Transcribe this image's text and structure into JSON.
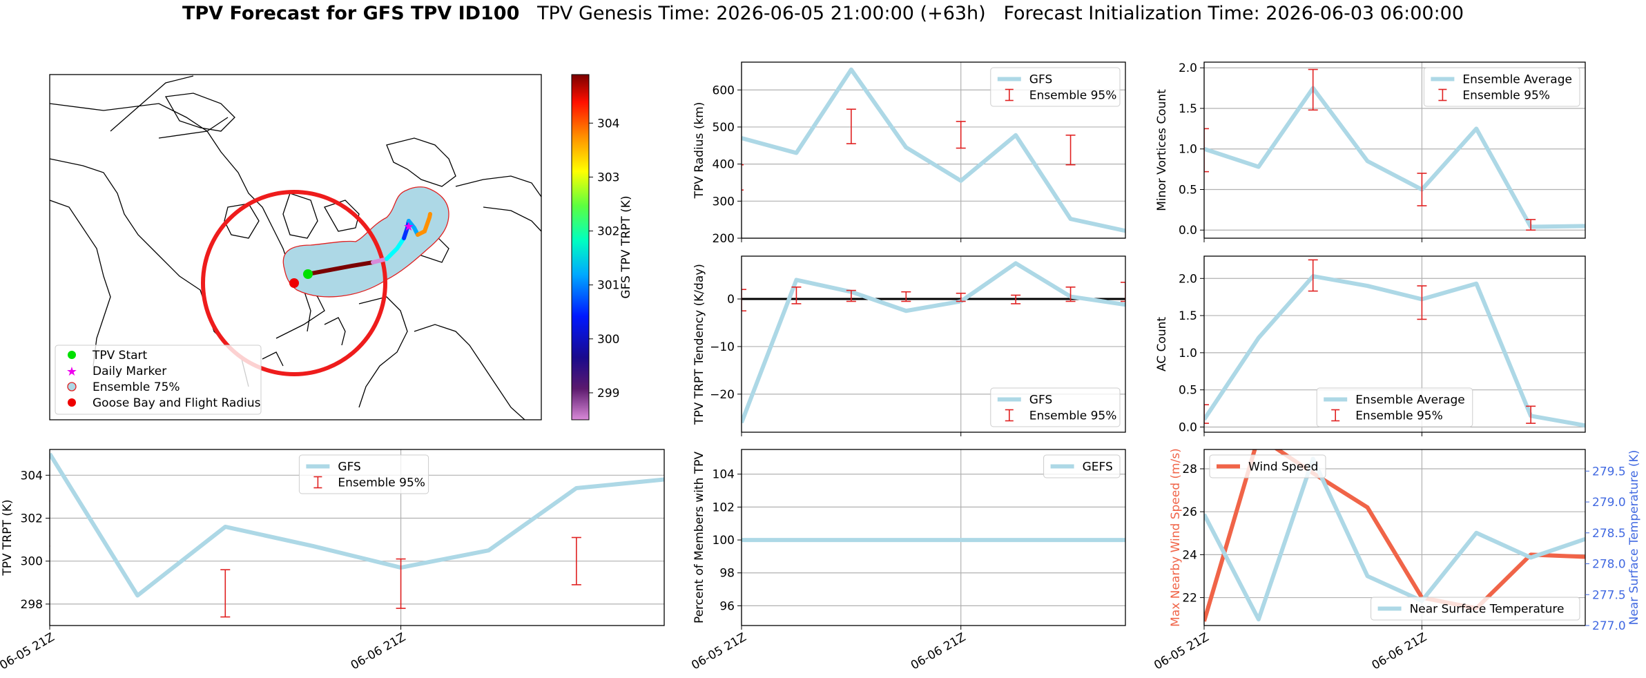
{
  "title": {
    "bold": "TPV Forecast for GFS TPV ID100",
    "genesis": "TPV Genesis Time: 2026-06-05 21:00:00 (+63h)",
    "init": "Forecast Initialization Time: 2026-06-03 06:00:00"
  },
  "colors": {
    "gfs_line": "#add8e6",
    "error_bar": "#e02020",
    "wind_line": "#f06448",
    "temp_axis": "#4169e1",
    "radius_circle": "#ee1c1c",
    "ensemble_fill": "#add8e6"
  },
  "map": {
    "colorbar_label": "GFS TPV TRPT (K)",
    "colorbar_ticks": [
      "299",
      "300",
      "301",
      "302",
      "303",
      "304"
    ],
    "colorbar_range": [
      298.5,
      304.9
    ],
    "legend": [
      "TPV Start",
      "Daily Marker",
      "Ensemble 75%",
      "Goose Bay and Flight Radius"
    ],
    "legend_icons": [
      "green-dot-icon",
      "magenta-star-icon",
      "outlined-circle-icon",
      "red-dot-icon"
    ]
  },
  "chart_data": [
    {
      "id": "radius",
      "type": "line",
      "ylabel": "TPV Radius (km)",
      "ylim": [
        200,
        675
      ],
      "yticks": [
        "200",
        "300",
        "400",
        "500",
        "600"
      ],
      "ytick_values": [
        200,
        300,
        400,
        500,
        600
      ],
      "x": [
        0,
        1,
        2,
        3,
        4,
        5,
        6,
        7
      ],
      "series": [
        {
          "name": "GFS",
          "values": [
            470,
            430,
            655,
            445,
            355,
            478,
            252,
            220
          ]
        }
      ],
      "errorbars": [
        {
          "x": -0.05,
          "low": 330,
          "high": 398
        },
        {
          "x": 2,
          "low": 455,
          "high": 548
        },
        {
          "x": 4,
          "low": 443,
          "high": 515
        },
        {
          "x": 6,
          "low": 398,
          "high": 478
        }
      ],
      "legend": [
        "GFS",
        "Ensemble 95%"
      ],
      "legend_position": "top-right",
      "xticks_visible": false
    },
    {
      "id": "minor",
      "type": "line",
      "ylabel": "Minor Vortices Count",
      "ylim": [
        -0.1,
        2.07
      ],
      "yticks": [
        "0.0",
        "0.5",
        "1.0",
        "1.5",
        "2.0"
      ],
      "ytick_values": [
        0,
        0.5,
        1,
        1.5,
        2
      ],
      "x": [
        0,
        1,
        2,
        3,
        4,
        5,
        6,
        7
      ],
      "series": [
        {
          "name": "Ensemble Average",
          "values": [
            1.0,
            0.78,
            1.75,
            0.85,
            0.5,
            1.25,
            0.04,
            0.05
          ]
        }
      ],
      "errorbars": [
        {
          "x": 0,
          "low": 0.72,
          "high": 1.25
        },
        {
          "x": 2,
          "low": 1.48,
          "high": 1.98
        },
        {
          "x": 4,
          "low": 0.3,
          "high": 0.7
        },
        {
          "x": 6,
          "low": 0.0,
          "high": 0.13
        }
      ],
      "legend": [
        "Ensemble Average",
        "Ensemble 95%"
      ],
      "legend_position": "top-right",
      "xticks_visible": false
    },
    {
      "id": "tendency",
      "type": "line",
      "ylabel": "TPV TRPT Tendency (K/day)",
      "ylim": [
        -28,
        9
      ],
      "yticks": [
        "−20",
        "−10",
        "0"
      ],
      "ytick_values": [
        -20,
        -10,
        0
      ],
      "x": [
        0,
        1,
        2,
        3,
        4,
        5,
        6,
        7
      ],
      "series": [
        {
          "name": "GFS",
          "values": [
            -26,
            4,
            1.5,
            -2.5,
            -0.5,
            7.5,
            0.5,
            -1.2
          ]
        }
      ],
      "zero_line": 0,
      "errorbars": [
        {
          "x": 0,
          "low": -2.5,
          "high": 2
        },
        {
          "x": 1,
          "low": -1,
          "high": 2.5
        },
        {
          "x": 2,
          "low": -0.5,
          "high": 1.8
        },
        {
          "x": 3,
          "low": -0.5,
          "high": 1.5
        },
        {
          "x": 4,
          "low": -0.5,
          "high": 1.2
        },
        {
          "x": 5,
          "low": -1,
          "high": 0.8
        },
        {
          "x": 6,
          "low": -0.5,
          "high": 2.5
        },
        {
          "x": 7,
          "low": -0.5,
          "high": 3.5
        }
      ],
      "legend": [
        "GFS",
        "Ensemble 95%"
      ],
      "legend_position": "bottom-right",
      "xticks_visible": false
    },
    {
      "id": "ac",
      "type": "line",
      "ylabel": "AC Count",
      "ylim": [
        -0.07,
        2.3
      ],
      "yticks": [
        "0.0",
        "0.5",
        "1.0",
        "1.5",
        "2.0"
      ],
      "ytick_values": [
        0,
        0.5,
        1,
        1.5,
        2
      ],
      "x": [
        0,
        1,
        2,
        3,
        4,
        5,
        6,
        7
      ],
      "series": [
        {
          "name": "Ensemble Average",
          "values": [
            0.1,
            1.2,
            2.03,
            1.9,
            1.72,
            1.93,
            0.15,
            0.02
          ]
        }
      ],
      "errorbars": [
        {
          "x": 0,
          "low": 0.05,
          "high": 0.3
        },
        {
          "x": 2,
          "low": 1.83,
          "high": 2.25
        },
        {
          "x": 4,
          "low": 1.45,
          "high": 1.9
        },
        {
          "x": 6,
          "low": 0.05,
          "high": 0.28
        }
      ],
      "legend": [
        "Ensemble Average",
        "Ensemble 95%"
      ],
      "legend_position": "bottom-center",
      "xticks_visible": false
    },
    {
      "id": "trpt",
      "type": "line",
      "ylabel": "TPV TRPT (K)",
      "ylim": [
        297,
        305.2
      ],
      "yticks": [
        "298",
        "300",
        "302",
        "304"
      ],
      "ytick_values": [
        298,
        300,
        302,
        304
      ],
      "x": [
        0,
        1,
        2,
        3,
        4,
        5,
        6,
        7
      ],
      "xticks": [
        "06-05 21Z",
        "06-06 21Z"
      ],
      "xtick_values": [
        0,
        4
      ],
      "series": [
        {
          "name": "GFS",
          "values": [
            305.0,
            298.4,
            301.6,
            300.7,
            299.7,
            300.5,
            303.4,
            303.8
          ]
        }
      ],
      "errorbars": [
        {
          "x": -0.05,
          "low": 300.7,
          "high": 302.8
        },
        {
          "x": 2,
          "low": 297.4,
          "high": 299.6
        },
        {
          "x": 4,
          "low": 297.8,
          "high": 300.1
        },
        {
          "x": 6,
          "low": 298.9,
          "high": 301.1
        }
      ],
      "legend": [
        "GFS",
        "Ensemble 95%"
      ],
      "legend_position": "top-center"
    },
    {
      "id": "percent",
      "type": "line",
      "ylabel": "Percent of Members with TPV",
      "ylim": [
        94.8,
        105.5
      ],
      "yticks": [
        "96",
        "98",
        "100",
        "102",
        "104"
      ],
      "ytick_values": [
        96,
        98,
        100,
        102,
        104
      ],
      "x": [
        0,
        1,
        2,
        3,
        4,
        5,
        6,
        7
      ],
      "xticks": [
        "06-05 21Z",
        "06-06 21Z"
      ],
      "xtick_values": [
        0,
        4
      ],
      "series": [
        {
          "name": "GEFS",
          "values": [
            100,
            100,
            100,
            100,
            100,
            100,
            100,
            100
          ]
        }
      ],
      "legend": [
        "GEFS"
      ],
      "legend_position": "top-right"
    },
    {
      "id": "wind",
      "type": "line",
      "ylabel": "Max Nearby Wind Speed (m/s)",
      "ylim": [
        20.7,
        28.9
      ],
      "yticks": [
        "22",
        "24",
        "26",
        "28"
      ],
      "ytick_values": [
        22,
        24,
        26,
        28
      ],
      "ylabel_right": "Near Surface Temperature (K)",
      "ylim_right": [
        277.0,
        279.85
      ],
      "yticks_right": [
        "277.0",
        "277.5",
        "278.0",
        "278.5",
        "279.0",
        "279.5"
      ],
      "ytick_values_right": [
        277,
        277.5,
        278,
        278.5,
        279,
        279.5
      ],
      "x": [
        0,
        1,
        2,
        3,
        4,
        5,
        6,
        7
      ],
      "xticks": [
        "06-05 21Z",
        "06-06 21Z"
      ],
      "xtick_values": [
        0,
        4
      ],
      "series": [
        {
          "name": "Wind Speed",
          "axis": "left",
          "values": [
            20.9,
            29.5,
            27.8,
            26.2,
            22.0,
            21.5,
            24.0,
            23.9
          ]
        },
        {
          "name": "Near Surface Temperature",
          "axis": "right",
          "values": [
            278.8,
            277.1,
            279.7,
            277.8,
            277.4,
            278.5,
            278.1,
            278.4
          ]
        }
      ],
      "legend_left": [
        "Wind Speed"
      ],
      "legend_right": [
        "Near Surface Temperature"
      ]
    }
  ]
}
